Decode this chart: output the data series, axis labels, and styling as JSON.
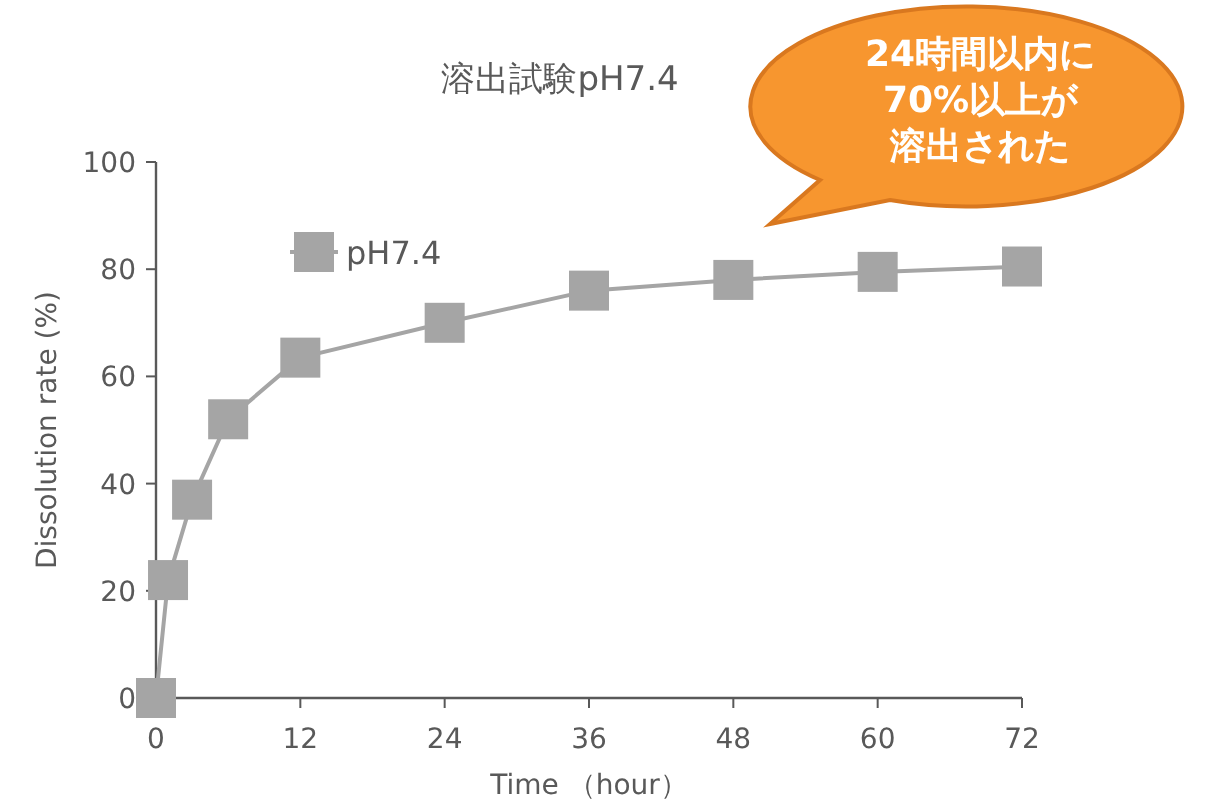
{
  "chart_data": {
    "type": "line",
    "title": "溶出試験pH7.4",
    "xlabel": "Time （hour）",
    "ylabel": "Dissolution rate (%)",
    "annotations": [
      "24時間以内に",
      "70%以上が",
      "溶出された"
    ],
    "x": [
      0,
      1,
      3,
      6,
      12,
      24,
      36,
      48,
      60,
      72
    ],
    "series": [
      {
        "name": "pH7.4",
        "color": "#a5a5a5",
        "values": [
          0,
          22,
          37,
          52,
          63.5,
          70,
          76,
          78,
          79.5,
          80.5
        ]
      }
    ],
    "xlim": [
      0,
      72
    ],
    "xticks": [
      0,
      12,
      24,
      36,
      48,
      60,
      72
    ],
    "ylim": [
      0,
      100
    ],
    "yticks": [
      0,
      20,
      40,
      60,
      80,
      100
    ],
    "grid": false,
    "legend": "top left",
    "marker": "square",
    "line_style": "solid"
  }
}
